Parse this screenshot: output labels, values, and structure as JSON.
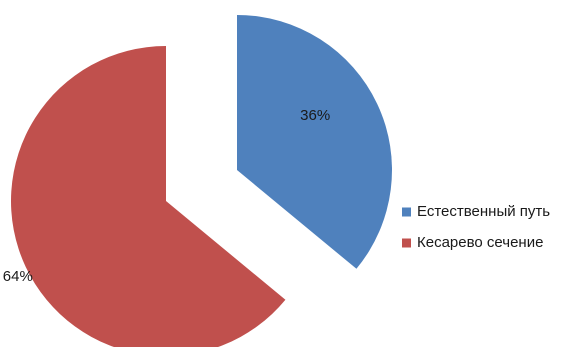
{
  "chart_data": {
    "type": "pie",
    "exploded": true,
    "legend_position": "right",
    "categories": [
      "Естественный путь",
      "Кесарево сечение"
    ],
    "values": [
      36,
      64
    ],
    "data_labels": [
      "36%",
      "64%"
    ],
    "colors": [
      "#4f81bd",
      "#c0504d"
    ]
  }
}
